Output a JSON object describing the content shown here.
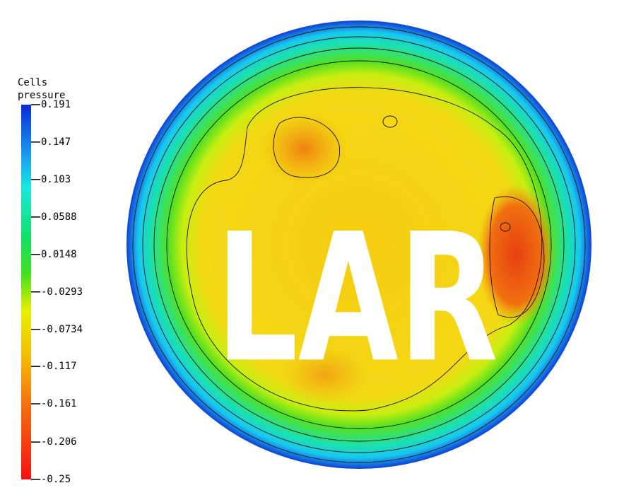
{
  "colorbar": {
    "title": [
      "Cells",
      "pressure"
    ],
    "range": [
      -0.25,
      0.191
    ],
    "ticks": [
      0.191,
      0.147,
      0.103,
      0.0588,
      0.0148,
      -0.0293,
      -0.0734,
      -0.117,
      -0.161,
      -0.206,
      -0.25
    ]
  },
  "overlay_text": "LAR"
}
